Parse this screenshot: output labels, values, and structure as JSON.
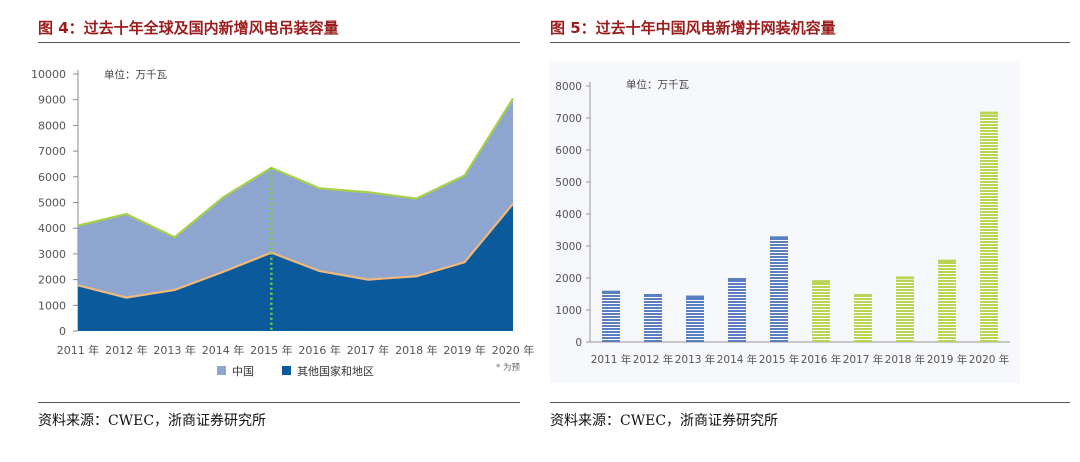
{
  "figures": [
    {
      "title": "图 4：过去十年全球及国内新增风电吊装容量",
      "source": "资料来源：CWEC，浙商证券研究所",
      "chart_data": {
        "type": "area",
        "unit_label": "单位：万千瓦",
        "categories": [
          "2011 年",
          "2012 年",
          "2013 年",
          "2014 年",
          "2015 年",
          "2016 年",
          "2017 年",
          "2018 年",
          "2019 年",
          "2020 年"
        ],
        "ylim": [
          0,
          10000
        ],
        "yticks": [
          "0",
          "1000",
          "2000",
          "3000",
          "4000",
          "5000",
          "6000",
          "7000",
          "8000",
          "9000",
          "10000"
        ],
        "series": [
          {
            "name": "中国",
            "values": [
              4100,
              4550,
              3650,
              5200,
              6350,
              5550,
              5400,
              5150,
              6050,
              9050
            ]
          },
          {
            "name": "其他国家和地区",
            "values": [
              1780,
              1300,
              1600,
              2300,
              3050,
              2330,
              2000,
              2130,
              2680,
              4950
            ]
          }
        ],
        "footnote": "* 为预",
        "colors": {
          "china": "#8ea6cf",
          "others": "#0a5a9c",
          "china_line": "#a8d04a",
          "others_line": "#f0b87a",
          "marker": "#7ccf3c"
        },
        "legend_position": "bottom"
      }
    },
    {
      "title": "图 5：过去十年中国风电新增并网装机容量",
      "source": "资料来源：CWEC，浙商证券研究所",
      "chart_data": {
        "type": "bar",
        "unit_label": "单位：万千瓦",
        "categories": [
          "2011 年",
          "2012 年",
          "2013 年",
          "2014 年",
          "2015 年",
          "2016 年",
          "2017 年",
          "2018 年",
          "2019 年",
          "2020 年"
        ],
        "values": [
          1600,
          1500,
          1450,
          2000,
          3300,
          1930,
          1500,
          2050,
          2570,
          7200
        ],
        "ylim": [
          0,
          8000
        ],
        "yticks": [
          "0",
          "1000",
          "2000",
          "3000",
          "4000",
          "5000",
          "6000",
          "7000",
          "8000"
        ],
        "colors": {
          "blue": "#5a7ec0",
          "green": "#b9d456"
        },
        "color_split_index": 5
      }
    }
  ]
}
